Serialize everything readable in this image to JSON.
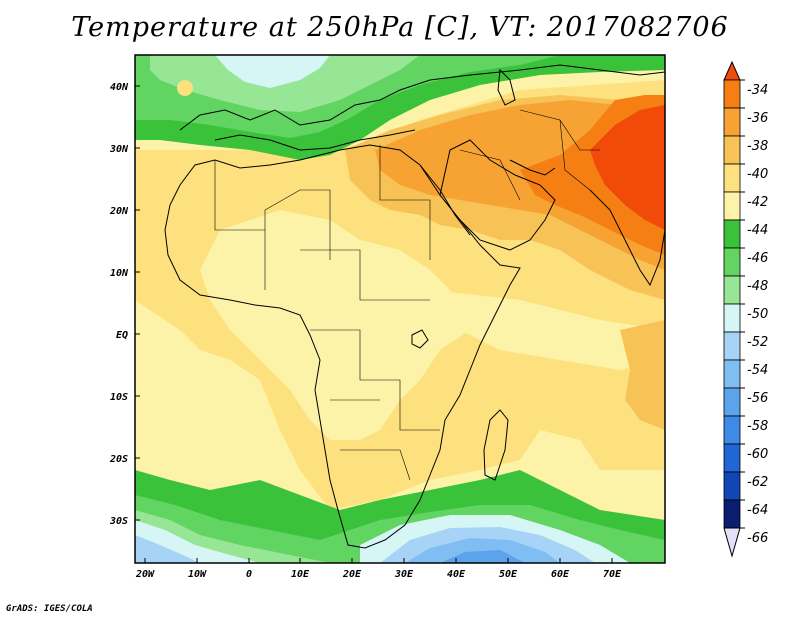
{
  "title": "Temperature at 250hPa [C], VT: 2017082706",
  "credit": "GrADS: IGES/COLA",
  "map": {
    "projection": "lat-lon",
    "lon_range": [
      -23,
      80
    ],
    "lat_range": [
      -37,
      45
    ],
    "x_ticks": [
      "20W",
      "10W",
      "0",
      "10E",
      "20E",
      "30E",
      "40E",
      "50E",
      "60E",
      "70E"
    ],
    "y_ticks": [
      "40N",
      "30N",
      "20N",
      "10N",
      "EQ",
      "10S",
      "20S",
      "30S"
    ],
    "background_fill": "#fdf3a8"
  },
  "colorbar": {
    "levels": [
      "-34",
      "-36",
      "-38",
      "-40",
      "-42",
      "-44",
      "-46",
      "-48",
      "-50",
      "-52",
      "-54",
      "-56",
      "-58",
      "-60",
      "-62",
      "-64",
      "-66"
    ],
    "colors": [
      "#f14a09",
      "#f57f12",
      "#f6a334",
      "#f7c357",
      "#fde17f",
      "#fdf3a8",
      "#3bc23b",
      "#62d462",
      "#96e696",
      "#d6f5f5",
      "#a7d3f6",
      "#80bdf3",
      "#5ba4ec",
      "#3d8be6",
      "#2066d6",
      "#1147b5",
      "#0a1d70",
      "#e4e0f7"
    ]
  }
}
